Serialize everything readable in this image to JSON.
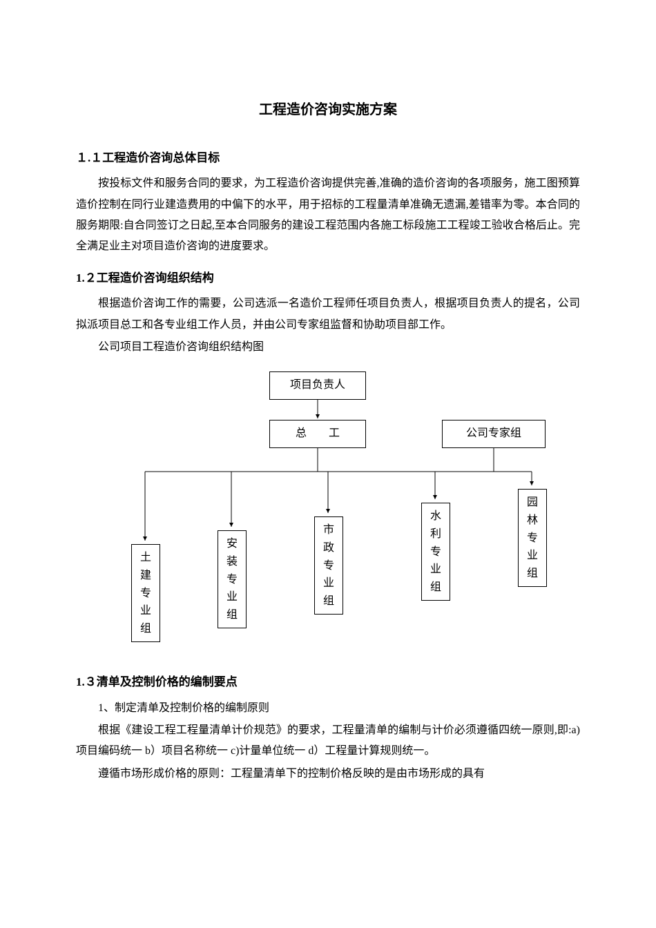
{
  "title": "工程造价咨询实施方案",
  "section1": {
    "heading": "１.１工程造价咨询总体目标",
    "paragraph": "按投标文件和服务合同的要求，为工程造价咨询提供完善,准确的造价咨询的各项服务，施工图预算造价控制在同行业建造费用的中偏下的水平，用于招标的工程量清单准确无遗漏,差错率为零。本合同的服务期限:自合同签订之日起,至本合同服务的建设工程范围内各施工标段施工工程竣工验收合格后止。完全满足业主对项目造价咨询的进度要求。"
  },
  "section2": {
    "heading": "1.２工程造价咨询组织结构",
    "paragraph1": "根据造价咨询工作的需要，公司选派一名造价工程师任项目负责人，根据项目负责人的提名，公司拟派项目总工和各专业组工作人员，并由公司专家组监督和协助项目部工作。",
    "paragraph2": "公司项目工程造价咨询组织结构图"
  },
  "orgChart": {
    "node1": "项目负责人",
    "node2": "总　　工",
    "node3": "公司专家组",
    "leaf1": "土建专业组",
    "leaf2": "安装专业组",
    "leaf3": "市政专业组",
    "leaf4": "水利专业组",
    "leaf5": "园林专业组",
    "arrowColor": "#000000"
  },
  "section3": {
    "heading": "1.３清单及控制价格的编制要点",
    "item1": "1、制定清单及控制价格的编制原则",
    "paragraph1": "根据《建设工程工程量清单计价规范》的要求，工程量清单的编制与计价必须遵循四统一原则,即:a)项目编码统一 b）项目名称统一 c)计量单位统一 d）工程量计算规则统一。",
    "paragraph2": "遵循市场形成价格的原则：工程量清单下的控制价格反映的是由市场形成的具有"
  }
}
